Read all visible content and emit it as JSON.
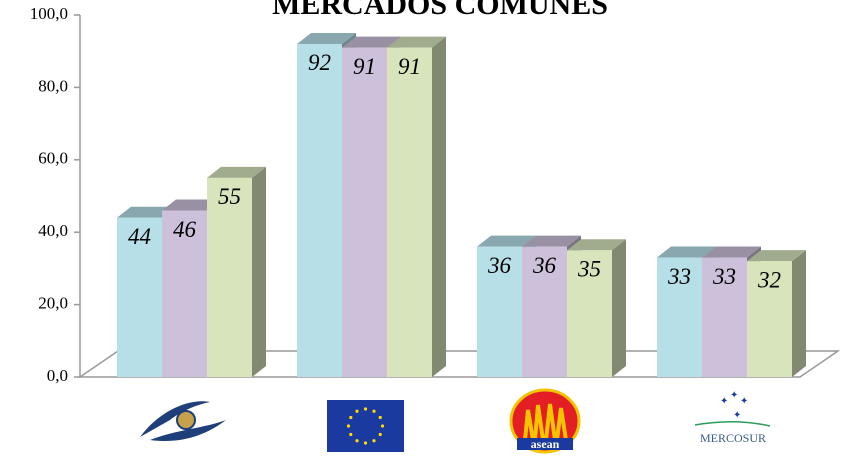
{
  "chart_data": {
    "type": "bar3d",
    "title": "MERCADOS COMUNES",
    "categories": [
      null,
      null,
      null,
      null
    ],
    "series": [
      {
        "color": "#b7dfe8",
        "values": [
          44,
          92,
          36,
          33
        ]
      },
      {
        "color": "#ccc0da",
        "values": [
          46,
          91,
          36,
          33
        ]
      },
      {
        "color": "#d7e4bc",
        "values": [
          55,
          91,
          35,
          32
        ]
      }
    ],
    "ylim": [
      0,
      100
    ],
    "yticks": [
      {
        "value": 0,
        "label": "0,0"
      },
      {
        "value": 20,
        "label": "20,0"
      },
      {
        "value": 40,
        "label": "40,0"
      },
      {
        "value": 60,
        "label": "60,0"
      },
      {
        "value": 80,
        "label": "80,0"
      },
      {
        "value": 100,
        "label": "100,0"
      }
    ],
    "grid": false
  },
  "logo_texts": [
    "asean",
    "MERCOSUR"
  ]
}
